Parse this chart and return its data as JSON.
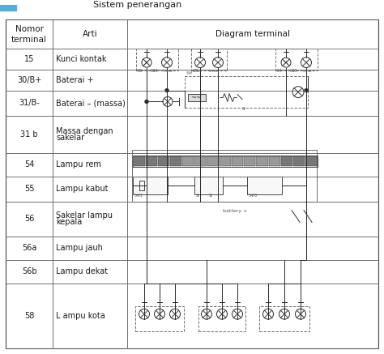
{
  "title": "Sistem penerangan",
  "rows": [
    {
      "terminal": "15",
      "arti": "Kunci kontak",
      "arti2": ""
    },
    {
      "terminal": "30/B+",
      "arti": "Baterai +",
      "arti2": ""
    },
    {
      "terminal": "31/B-",
      "arti": "Baterai – (massa)",
      "arti2": ""
    },
    {
      "terminal": "31 b",
      "arti": "Massa dengan",
      "arti2": "sakelar"
    },
    {
      "terminal": "54",
      "arti": "Lampu rem",
      "arti2": ""
    },
    {
      "terminal": "55",
      "arti": "Lampu kabut",
      "arti2": ""
    },
    {
      "terminal": "56",
      "arti": "Sakelar lampu",
      "arti2": "kepala"
    },
    {
      "terminal": "56a",
      "arti": "Lampu jauh",
      "arti2": ""
    },
    {
      "terminal": "56b",
      "arti": "Lampu dekat",
      "arti2": ""
    },
    {
      "terminal": "58",
      "arti": "L ampu kota",
      "arti2": ""
    }
  ],
  "bg_color": "#ffffff",
  "text_color": "#1a1a1a",
  "wire_color": "#2a2a2a",
  "blue_color": "#5bacd1",
  "title_fs": 8.0,
  "header_fs": 7.5,
  "cell_fs": 7.0
}
